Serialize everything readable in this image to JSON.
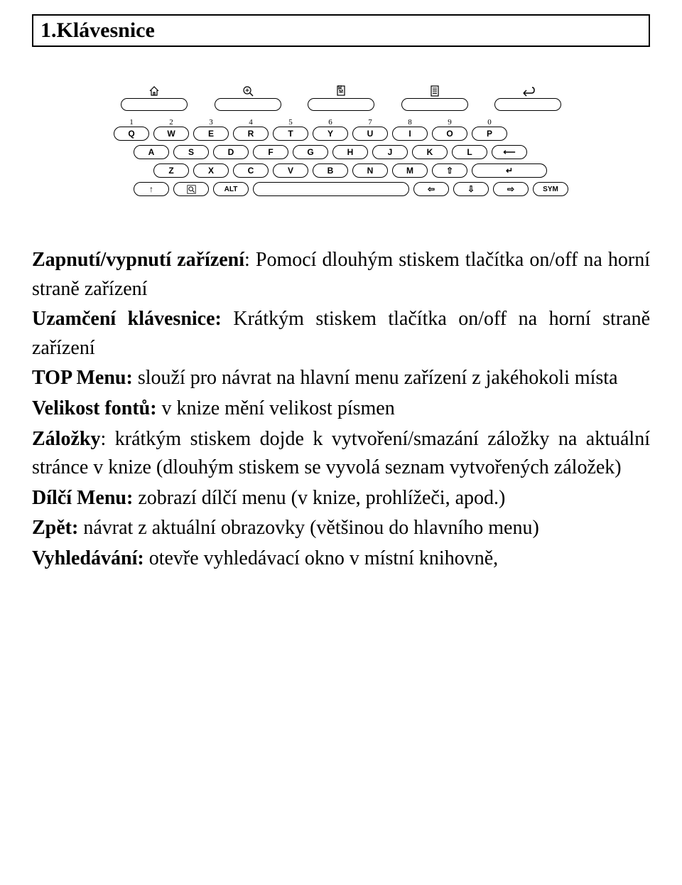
{
  "title": "1.Klávesnice",
  "keyboard": {
    "function_row": [
      {
        "icon": "home"
      },
      {
        "icon": "zoom"
      },
      {
        "icon": "bookmark-m"
      },
      {
        "icon": "menu-list"
      },
      {
        "icon": "back-arrow"
      }
    ],
    "num_row": {
      "numbers": [
        "1",
        "2",
        "3",
        "4",
        "5",
        "6",
        "7",
        "8",
        "9",
        "0"
      ],
      "letters": [
        "Q",
        "W",
        "E",
        "R",
        "T",
        "Y",
        "U",
        "I",
        "O",
        "P"
      ]
    },
    "row_a": [
      "A",
      "S",
      "D",
      "F",
      "G",
      "H",
      "J",
      "K",
      "L",
      "⟵"
    ],
    "row_z": [
      "Z",
      "X",
      "C",
      "V",
      "B",
      "N",
      "M",
      "⇧"
    ],
    "enter_label": "↵",
    "bottom_row": {
      "up": "↑",
      "search": "search",
      "alt": "ALT",
      "space": "",
      "left": "⇦",
      "down": "⇩",
      "right": "⇨",
      "sym": "SYM"
    }
  },
  "definitions": [
    {
      "term": "Zapnutí/vypnutí zařízení",
      "sep": ": ",
      "text": "Pomocí dlouhým stiskem tlačítka on/off na horní straně zařízení"
    },
    {
      "term": "Uzamčení klávesnice:",
      "sep": " ",
      "text": "Krátkým stiskem tlačítka on/off na horní straně zařízení"
    },
    {
      "term": "TOP Menu:",
      "sep": " ",
      "text": "slouží pro návrat na hlavní menu zařízení z jakéhokoli místa"
    },
    {
      "term": "Velikost fontů:",
      "sep": " ",
      "text": "v knize mění velikost písmen"
    },
    {
      "term": "Záložky",
      "sep": ": ",
      "text": "krátkým stiskem dojde k vytvoření/smazání záložky na aktuální stránce v knize (dlouhým stiskem se vyvolá seznam vytvořených záložek)"
    },
    {
      "term": "Dílčí Menu:",
      "sep": " ",
      "text": "zobrazí dílčí menu (v knize, prohlížeči, apod.)"
    },
    {
      "term": "Zpět:",
      "sep": " ",
      "text": "návrat z aktuální obrazovky (většinou do hlavního menu)"
    },
    {
      "term": "Vyhledávání:",
      "sep": " ",
      "text": "otevře vyhledávací okno v místní knihovně,"
    }
  ],
  "colors": {
    "border": "#000000",
    "background": "#ffffff",
    "text": "#000000"
  }
}
